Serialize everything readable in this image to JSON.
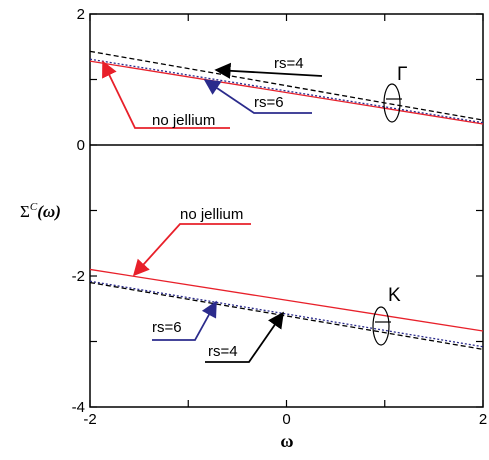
{
  "chart_data": {
    "type": "line",
    "xlabel": "ω",
    "ylabel_main": "Σ",
    "ylabel_sup": "C",
    "ylabel_arg": "(ω)",
    "xlim": [
      -2,
      2
    ],
    "ylim": [
      -4,
      2
    ],
    "x_ticks": [
      -2,
      -1,
      0,
      1,
      2
    ],
    "x_tick_labels": [
      "-2",
      "",
      "0",
      "",
      "2"
    ],
    "y_ticks": [
      -4,
      -3,
      -2,
      -1,
      0,
      1,
      2
    ],
    "y_tick_labels": [
      "-4",
      "",
      "-2",
      "",
      "0",
      "",
      "2"
    ],
    "reference_line_y": 0,
    "groups": [
      {
        "label": "Γ",
        "series": [
          {
            "name": "rs=4",
            "color": "#000000",
            "dash": "dashed",
            "x": [
              -2,
              2
            ],
            "y": [
              1.43,
              0.38
            ]
          },
          {
            "name": "rs=6",
            "color": "#2b2b8c",
            "dash": "dotted",
            "x": [
              -2,
              2
            ],
            "y": [
              1.31,
              0.34
            ]
          },
          {
            "name": "no jellium",
            "color": "#e8202a",
            "dash": "solid",
            "x": [
              -2,
              2
            ],
            "y": [
              1.28,
              0.32
            ]
          }
        ]
      },
      {
        "label": "K",
        "series": [
          {
            "name": "no jellium",
            "color": "#e8202a",
            "dash": "solid",
            "x": [
              -2,
              2
            ],
            "y": [
              -1.9,
              -2.84
            ]
          },
          {
            "name": "rs=6",
            "color": "#2b2b8c",
            "dash": "dotted",
            "x": [
              -2,
              2
            ],
            "y": [
              -2.08,
              -3.08
            ]
          },
          {
            "name": "rs=4",
            "color": "#000000",
            "dash": "dashed",
            "x": [
              -2,
              2
            ],
            "y": [
              -2.1,
              -3.12
            ]
          }
        ]
      }
    ],
    "annotations": [
      {
        "text": "rs=4",
        "color": "#000000",
        "group": 0,
        "series": 0
      },
      {
        "text": "rs=6",
        "color": "#2b2b8c",
        "group": 0,
        "series": 1
      },
      {
        "text": "no jellium",
        "color": "#e8202a",
        "group": 0,
        "series": 2
      },
      {
        "text": "no jellium",
        "color": "#e8202a",
        "group": 1,
        "series": 0
      },
      {
        "text": "rs=6",
        "color": "#2b2b8c",
        "group": 1,
        "series": 1
      },
      {
        "text": "rs=4",
        "color": "#000000",
        "group": 1,
        "series": 2
      }
    ]
  }
}
